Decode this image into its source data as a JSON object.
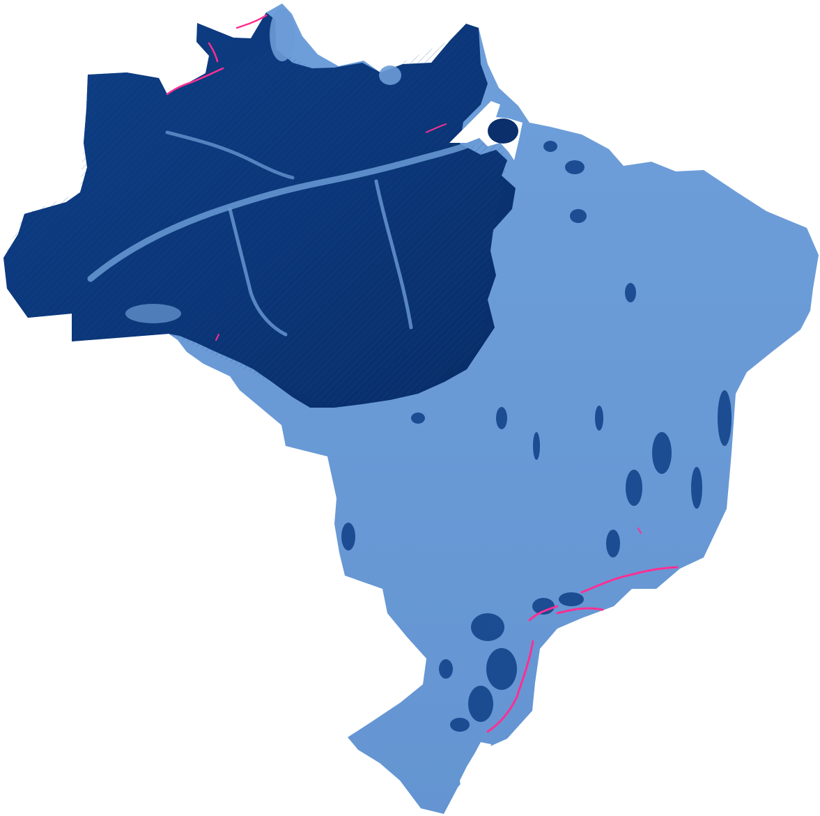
{
  "map": {
    "region": "Brazil",
    "style": "shaded-relief choropleth",
    "colors": {
      "background": "#ffffff",
      "light_region": "#6b9bd6",
      "dark_region": "#0f3f86",
      "darkest_region": "#0a2f6b",
      "highlight": "#ff2f92",
      "water": "#ffffff"
    },
    "legend": null
  }
}
